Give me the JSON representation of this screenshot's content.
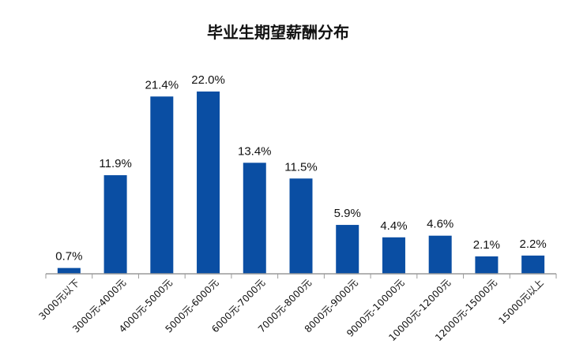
{
  "chart_data": {
    "type": "bar",
    "title": "毕业生期望薪酬分布",
    "xlabel": "",
    "ylabel": "",
    "ylim": [
      0,
      22
    ],
    "grid": false,
    "legend": "none",
    "bar_color": "#0a4ea3",
    "categories": [
      "3000元以下",
      "3000元-4000元",
      "4000元-5000元",
      "5000元-6000元",
      "6000元-7000元",
      "7000元-8000元",
      "8000元-9000元",
      "9000元-10000元",
      "10000元-12000元",
      "12000元-15000元",
      "15000元以上"
    ],
    "values": [
      0.7,
      11.9,
      21.4,
      22.0,
      13.4,
      11.5,
      5.9,
      4.4,
      4.6,
      2.1,
      2.2
    ],
    "data_labels": [
      "0.7%",
      "11.9%",
      "21.4%",
      "22.0%",
      "13.4%",
      "11.5%",
      "5.9%",
      "4.4%",
      "4.6%",
      "2.1%",
      "2.2%"
    ]
  }
}
